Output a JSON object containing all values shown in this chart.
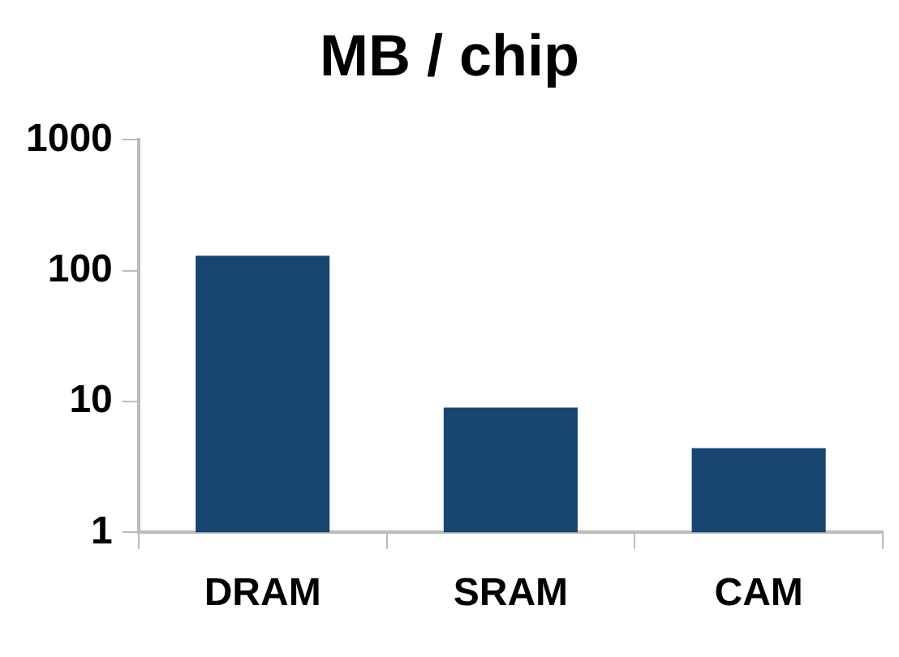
{
  "chart_data": {
    "type": "bar",
    "title": "MB / chip",
    "categories": [
      "DRAM",
      "SRAM",
      "CAM"
    ],
    "values": [
      130,
      9,
      4.4
    ],
    "color": "#17456f",
    "log": true,
    "ylim": [
      1,
      1000
    ],
    "yticks": [
      1,
      10,
      100,
      1000
    ],
    "grid": false,
    "legend": false
  }
}
